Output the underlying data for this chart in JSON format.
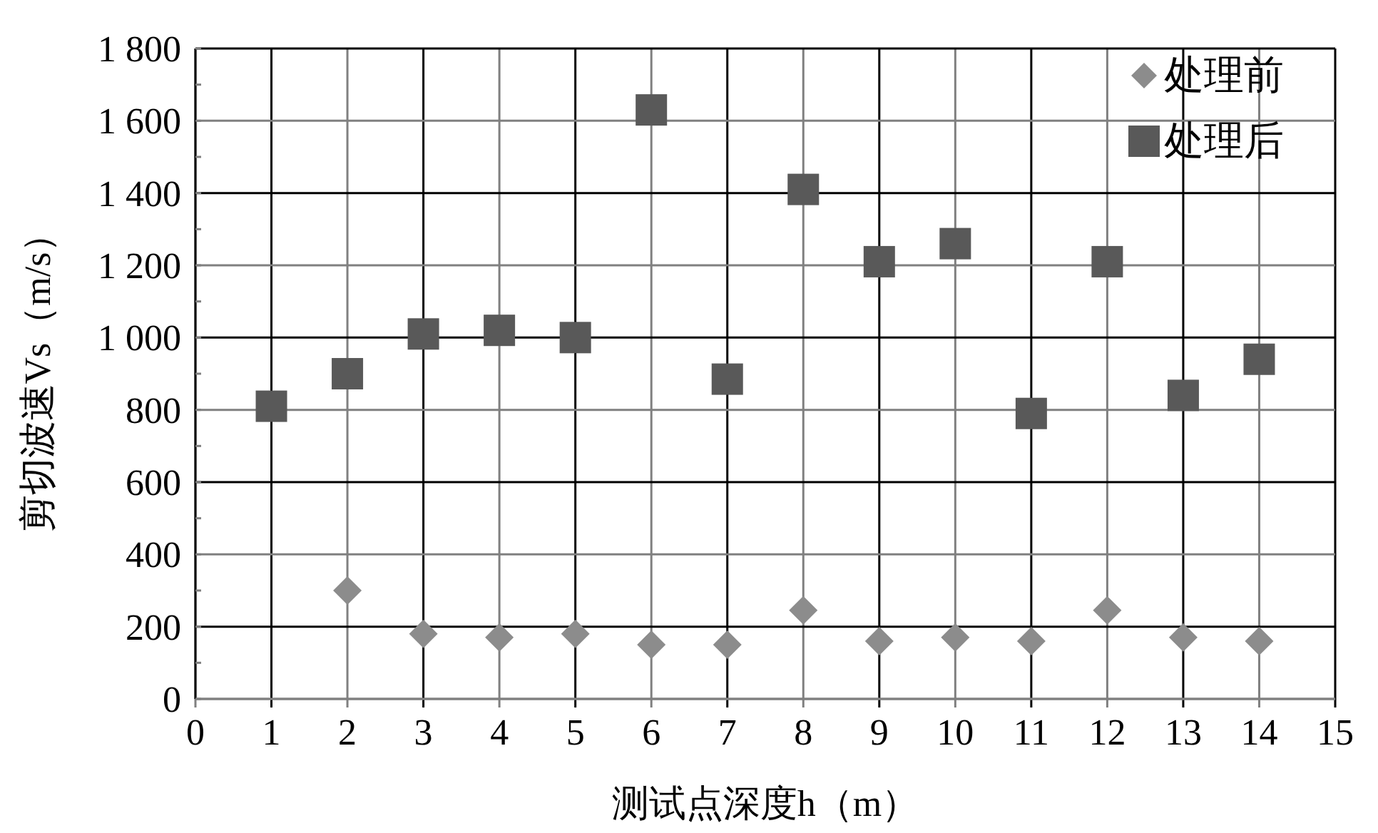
{
  "chart_data": {
    "type": "scatter",
    "xlabel": "测试点深度h（m）",
    "ylabel": "剪切波速Vs（m/s）",
    "xlim": [
      0,
      15
    ],
    "xticks": [
      0,
      1,
      2,
      3,
      4,
      5,
      6,
      7,
      8,
      9,
      10,
      11,
      12,
      13,
      14,
      15
    ],
    "ylim": [
      0,
      1800
    ],
    "yticks": [
      0,
      {
        "value": 100,
        "label": null
      },
      200,
      {
        "value": 300,
        "label": null
      },
      400,
      {
        "value": 500,
        "label": null
      },
      600,
      {
        "value": 700,
        "label": null
      },
      800,
      {
        "value": 900,
        "label": null
      },
      {
        "value": 1000,
        "label": "1 000"
      },
      {
        "value": 1100,
        "label": null
      },
      {
        "value": 1200,
        "label": "1 200"
      },
      {
        "value": 1300,
        "label": null
      },
      {
        "value": 1400,
        "label": "1 400"
      },
      {
        "value": 1500,
        "label": null
      },
      {
        "value": 1600,
        "label": "1 600"
      },
      {
        "value": 1700,
        "label": null
      },
      {
        "value": 1800,
        "label": "1 800"
      }
    ],
    "grid": true,
    "legend": "top right",
    "series": [
      {
        "name": "处理前",
        "color": "#8c8c8c",
        "marker": "diamond",
        "x": [
          2,
          3,
          4,
          5,
          6,
          7,
          8,
          9,
          10,
          11,
          12,
          13,
          14
        ],
        "values": [
          300,
          180,
          170,
          180,
          150,
          150,
          245,
          160,
          170,
          160,
          245,
          170,
          160
        ]
      },
      {
        "name": "处理后",
        "color": "#595959",
        "marker": "square",
        "x": [
          1,
          2,
          3,
          4,
          5,
          6,
          7,
          8,
          9,
          10,
          11,
          12,
          13,
          14
        ],
        "values": [
          810,
          900,
          1010,
          1020,
          1000,
          1630,
          885,
          1410,
          1210,
          1260,
          790,
          1210,
          840,
          940
        ]
      }
    ]
  }
}
